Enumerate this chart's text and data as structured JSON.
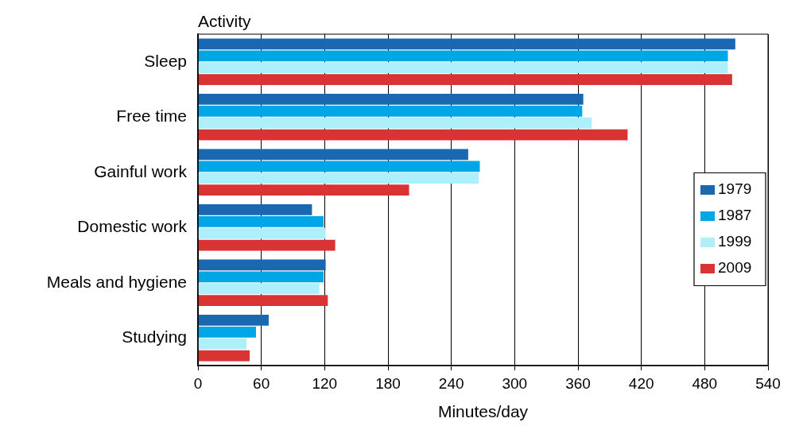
{
  "chart_data": {
    "type": "bar",
    "orientation": "horizontal",
    "ylabel": "Activity",
    "xlabel": "Minutes/day",
    "categories": [
      "Sleep",
      "Free time",
      "Gainful work",
      "Domestic work",
      "Meals and hygiene",
      "Studying"
    ],
    "series": [
      {
        "name": "1979",
        "color": "#1a69b0",
        "values": [
          509,
          365,
          256,
          108,
          121,
          67
        ]
      },
      {
        "name": "1987",
        "color": "#00a6e6",
        "values": [
          502,
          364,
          267,
          119,
          119,
          55
        ]
      },
      {
        "name": "1999",
        "color": "#adf0fc",
        "values": [
          502,
          373,
          266,
          121,
          115,
          46
        ]
      },
      {
        "name": "2009",
        "color": "#d93333",
        "values": [
          506,
          407,
          200,
          130,
          123,
          49
        ]
      }
    ],
    "xlim": [
      0,
      540
    ],
    "xticks": [
      0,
      60,
      120,
      180,
      240,
      300,
      360,
      420,
      480,
      540
    ],
    "grid": "x",
    "legend": "right"
  }
}
